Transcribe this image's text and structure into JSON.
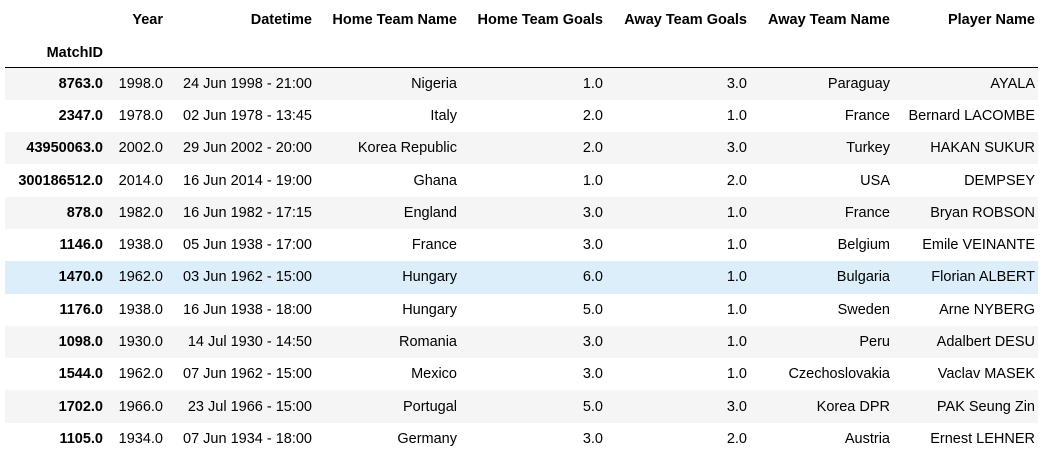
{
  "table": {
    "index_name": "MatchID",
    "columns": [
      "Year",
      "Datetime",
      "Home Team Name",
      "Home Team Goals",
      "Away Team Goals",
      "Away Team Name",
      "Player Name"
    ],
    "highlighted_row": 6,
    "highlight_color": "#ddeefb",
    "stripe_color": "#f5f5f5",
    "rows": [
      {
        "index": "8763.0",
        "cells": [
          "1998.0",
          "24 Jun 1998 - 21:00",
          "Nigeria",
          "1.0",
          "3.0",
          "Paraguay",
          "AYALA"
        ]
      },
      {
        "index": "2347.0",
        "cells": [
          "1978.0",
          "02 Jun 1978 - 13:45",
          "Italy",
          "2.0",
          "1.0",
          "France",
          "Bernard LACOMBE"
        ]
      },
      {
        "index": "43950063.0",
        "cells": [
          "2002.0",
          "29 Jun 2002 - 20:00",
          "Korea Republic",
          "2.0",
          "3.0",
          "Turkey",
          "HAKAN SUKUR"
        ]
      },
      {
        "index": "300186512.0",
        "cells": [
          "2014.0",
          "16 Jun 2014 - 19:00",
          "Ghana",
          "1.0",
          "2.0",
          "USA",
          "DEMPSEY"
        ]
      },
      {
        "index": "878.0",
        "cells": [
          "1982.0",
          "16 Jun 1982 - 17:15",
          "England",
          "3.0",
          "1.0",
          "France",
          "Bryan ROBSON"
        ]
      },
      {
        "index": "1146.0",
        "cells": [
          "1938.0",
          "05 Jun 1938 - 17:00",
          "France",
          "3.0",
          "1.0",
          "Belgium",
          "Emile VEINANTE"
        ]
      },
      {
        "index": "1470.0",
        "cells": [
          "1962.0",
          "03 Jun 1962 - 15:00",
          "Hungary",
          "6.0",
          "1.0",
          "Bulgaria",
          "Florian ALBERT"
        ]
      },
      {
        "index": "1176.0",
        "cells": [
          "1938.0",
          "16 Jun 1938 - 18:00",
          "Hungary",
          "5.0",
          "1.0",
          "Sweden",
          "Arne NYBERG"
        ]
      },
      {
        "index": "1098.0",
        "cells": [
          "1930.0",
          "14 Jul 1930 - 14:50",
          "Romania",
          "3.0",
          "1.0",
          "Peru",
          "Adalbert DESU"
        ]
      },
      {
        "index": "1544.0",
        "cells": [
          "1962.0",
          "07 Jun 1962 - 15:00",
          "Mexico",
          "3.0",
          "1.0",
          "Czechoslovakia",
          "Vaclav MASEK"
        ]
      },
      {
        "index": "1702.0",
        "cells": [
          "1966.0",
          "23 Jul 1966 - 15:00",
          "Portugal",
          "5.0",
          "3.0",
          "Korea DPR",
          "PAK Seung Zin"
        ]
      },
      {
        "index": "1105.0",
        "cells": [
          "1934.0",
          "07 Jun 1934 - 18:00",
          "Germany",
          "3.0",
          "2.0",
          "Austria",
          "Ernest LEHNER"
        ]
      }
    ]
  }
}
